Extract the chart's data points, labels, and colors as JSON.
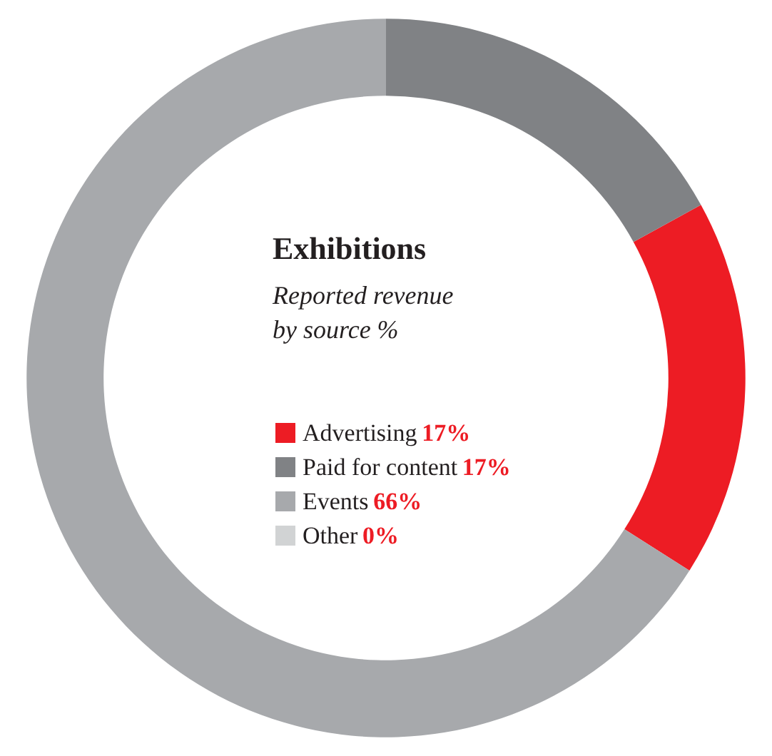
{
  "chart_data": {
    "type": "donut",
    "title": "Exhibitions",
    "subtitle": "Reported revenue\nby source %",
    "categories": [
      "Advertising",
      "Paid for content",
      "Events",
      "Other"
    ],
    "values": [
      17,
      17,
      66,
      0
    ],
    "colors": [
      "#ed1c24",
      "#808285",
      "#a7a9ac",
      "#d1d3d4"
    ],
    "value_labels": [
      "17%",
      "17%",
      "66%",
      "0%"
    ],
    "legend": "center"
  }
}
